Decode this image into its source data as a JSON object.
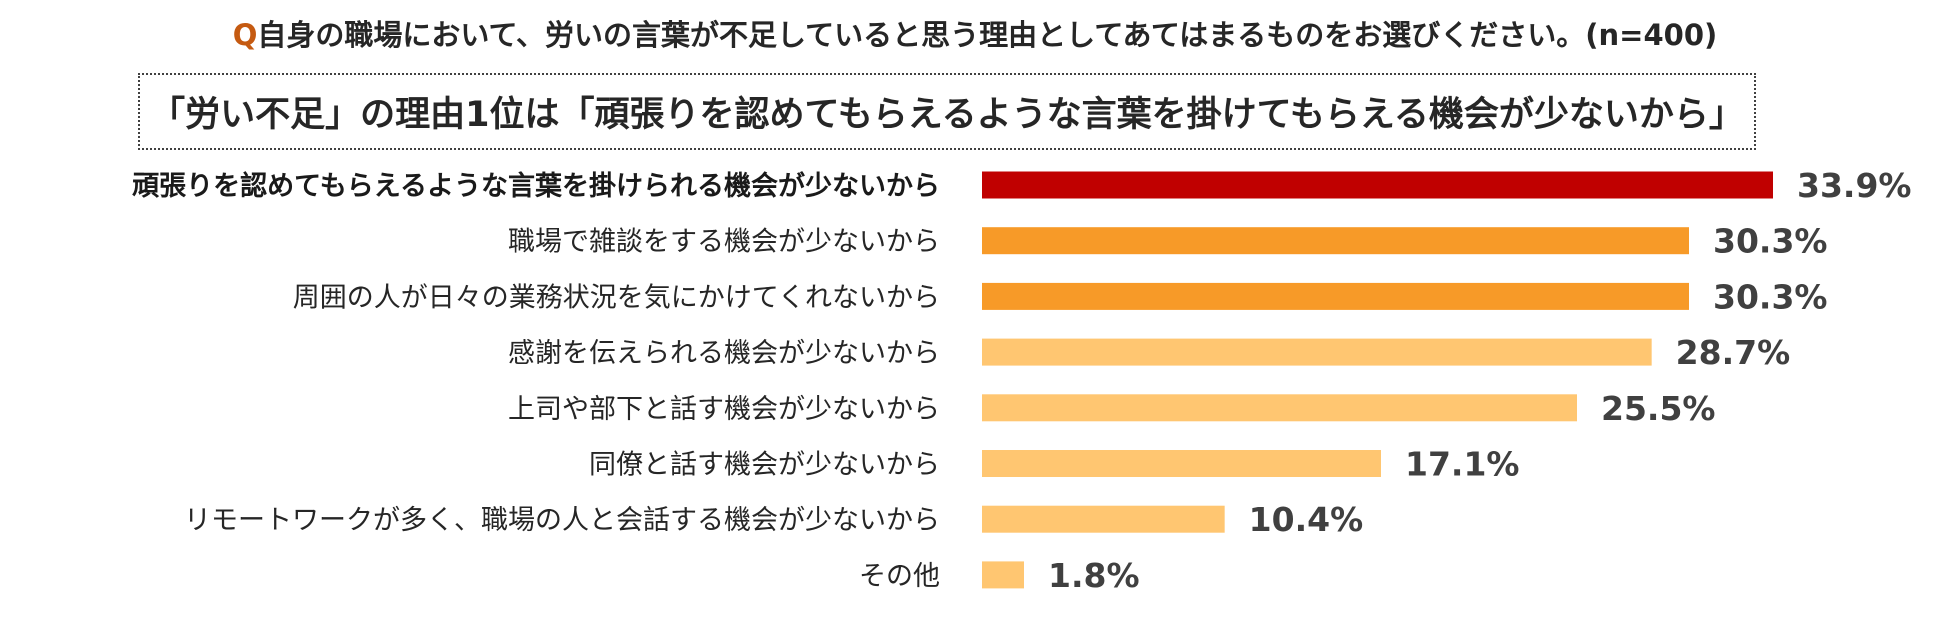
{
  "question": {
    "prefix": "Q",
    "text": "自身の職場において、労いの言葉が不足していると思う理由としてあてはまるものをお選びください。(n=400)"
  },
  "headline": "「労い不足」の理由1位は「頑張りを認めてもらえるような言葉を掛けてもらえる機会が少ないから」",
  "colors": {
    "top": "#c00000",
    "second": "#f79a28",
    "rest": "#ffc671"
  },
  "chart_data": {
    "type": "bar",
    "orientation": "horizontal",
    "title": "",
    "xlabel": "",
    "ylabel": "",
    "xlim": [
      0,
      40
    ],
    "grid": false,
    "categories": [
      "頑張りを認めてもらえるような言葉を掛けられる機会が少ないから",
      "職場で雑談をする機会が少ないから",
      "周囲の人が日々の業務状況を気にかけてくれないから",
      "感謝を伝えられる機会が少ないから",
      "上司や部下と話す機会が少ないから",
      "同僚と話す機会が少ないから",
      "リモートワークが多く、職場の人と会話する機会が少ないから",
      "その他"
    ],
    "values": [
      33.9,
      30.3,
      30.3,
      28.7,
      25.5,
      17.1,
      10.4,
      1.8
    ],
    "value_labels": [
      "33.9%",
      "30.3%",
      "30.3%",
      "28.7%",
      "25.5%",
      "17.1%",
      "10.4%",
      "1.8%"
    ],
    "bar_colors": [
      "top",
      "second",
      "second",
      "rest",
      "rest",
      "rest",
      "rest",
      "rest"
    ]
  }
}
